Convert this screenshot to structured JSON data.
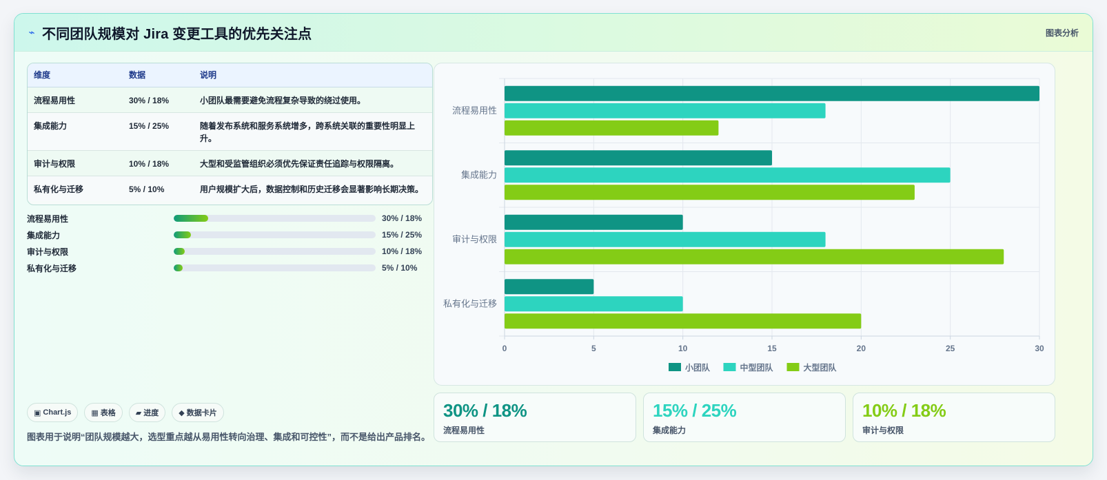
{
  "header": {
    "icon": "bolt-icon",
    "title": "不同团队规模对 Jira 变更工具的优先关注点",
    "tag": "图表分析"
  },
  "table": {
    "headers": [
      "维度",
      "数据",
      "说明"
    ],
    "rows": [
      {
        "dim": "流程易用性",
        "data": "30% / 18%",
        "desc": "小团队最需要避免流程复杂导致的绕过使用。"
      },
      {
        "dim": "集成能力",
        "data": "15% / 25%",
        "desc": "随着发布系统和服务系统增多，跨系统关联的重要性明显上升。"
      },
      {
        "dim": "审计与权限",
        "data": "10% / 18%",
        "desc": "大型和受监管组织必须优先保证责任追踪与权限隔离。"
      },
      {
        "dim": "私有化与迁移",
        "data": "5% / 10%",
        "desc": "用户规模扩大后，数据控制和历史迁移会显著影响长期决策。"
      }
    ]
  },
  "progress": [
    {
      "label": "流程易用性",
      "value": "30% / 18%",
      "fill_pct": 17
    },
    {
      "label": "集成能力",
      "value": "15% / 25%",
      "fill_pct": 8.5
    },
    {
      "label": "审计与权限",
      "value": "10% / 18%",
      "fill_pct": 5.5
    },
    {
      "label": "私有化与迁移",
      "value": "5% / 10%",
      "fill_pct": 4.5
    }
  ],
  "pills": [
    {
      "icon": "▣",
      "label": "Chart.js"
    },
    {
      "icon": "▦",
      "label": "表格"
    },
    {
      "icon": "▰",
      "label": "进度"
    },
    {
      "icon": "◆",
      "label": "数据卡片"
    }
  ],
  "note": "图表用于说明“团队规模越大，选型重点越从易用性转向治理、集成和可控性”，而不是给出产品排名。",
  "stats": [
    {
      "value": "30% / 18%",
      "label": "流程易用性",
      "color": "#0f9484"
    },
    {
      "value": "15% / 25%",
      "label": "集成能力",
      "color": "#2dd4bf"
    },
    {
      "value": "10% / 18%",
      "label": "审计与权限",
      "color": "#84cc16"
    }
  ],
  "chart_data": {
    "type": "bar",
    "orientation": "horizontal",
    "categories": [
      "流程易用性",
      "集成能力",
      "审计与权限",
      "私有化与迁移"
    ],
    "series": [
      {
        "name": "小团队",
        "values": [
          30,
          15,
          10,
          5
        ],
        "color": "#0f9484"
      },
      {
        "name": "中型团队",
        "values": [
          18,
          25,
          18,
          10
        ],
        "color": "#2dd4bf"
      },
      {
        "name": "大型团队",
        "values": [
          12,
          23,
          28,
          20
        ],
        "color": "#84cc16"
      }
    ],
    "xlim": [
      0,
      30
    ],
    "xticks": [
      0,
      5,
      10,
      15,
      20,
      25,
      30
    ],
    "grid": true,
    "legend": "bottom"
  }
}
